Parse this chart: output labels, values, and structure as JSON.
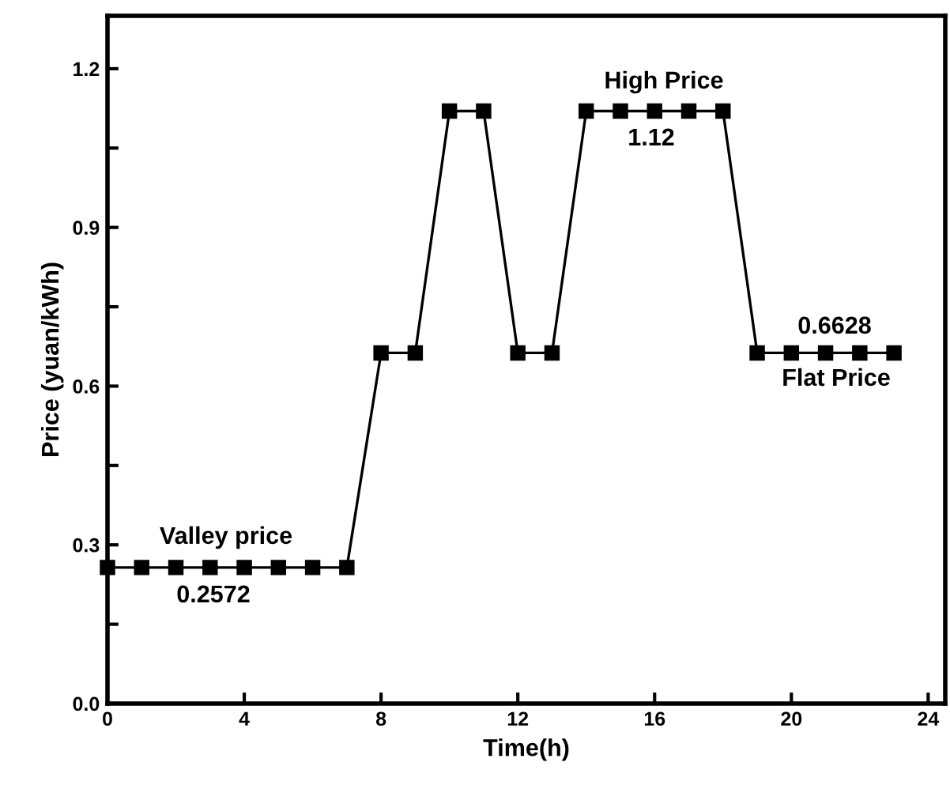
{
  "chart_data": {
    "type": "line",
    "xlabel": "Time(h)",
    "ylabel": "Price (yuan/kWh)",
    "x": [
      0,
      1,
      2,
      3,
      4,
      5,
      6,
      7,
      8,
      9,
      10,
      11,
      12,
      13,
      14,
      15,
      16,
      17,
      18,
      19,
      20,
      21,
      22,
      23
    ],
    "series": [
      {
        "color": "#000000",
        "values": [
          0.2572,
          0.2572,
          0.2572,
          0.2572,
          0.2572,
          0.2572,
          0.2572,
          0.2572,
          0.6628,
          0.6628,
          1.12,
          1.12,
          0.6628,
          0.6628,
          1.12,
          1.12,
          1.12,
          1.12,
          1.12,
          0.6628,
          0.6628,
          0.6628,
          0.6628,
          0.6628
        ]
      }
    ],
    "xlim": [
      0,
      24.5
    ],
    "xticks": [
      0,
      4,
      8,
      12,
      16,
      20,
      24
    ],
    "ylim": [
      0,
      1.3
    ],
    "yticks": [
      {
        "value": 0,
        "label": "0.0"
      },
      {
        "value": 0.15,
        "label": null
      },
      0.3,
      {
        "value": 0.45,
        "label": null
      },
      0.6,
      {
        "value": 0.75,
        "label": null
      },
      0.9,
      {
        "value": 1.05,
        "label": null
      },
      1.2
    ],
    "marker": "square",
    "line_style": "solid",
    "grid": false,
    "legend": false,
    "annotations": [
      "Valley price",
      "0.2572",
      "High Price",
      "1.12",
      "0.6628",
      "Flat Price"
    ]
  }
}
